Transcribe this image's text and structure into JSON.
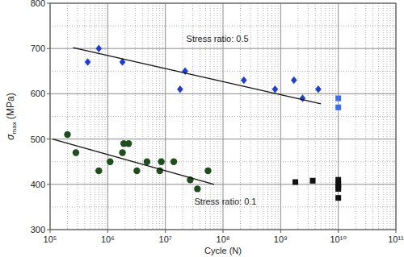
{
  "chart_data": {
    "type": "scatter",
    "log": "x",
    "grid": true,
    "x_label": "Cycle (N)",
    "y_label": "σmax (MPa)",
    "xlim": [
      100000,
      100000000000
    ],
    "ylim": [
      300,
      800
    ],
    "xticks": [
      {
        "value": 100000,
        "label": "10⁵"
      },
      {
        "value": 1000000,
        "label": "10⁶"
      },
      {
        "value": 10000000,
        "label": "10⁷"
      },
      {
        "value": 100000000,
        "label": "10⁸"
      },
      {
        "value": 1000000000,
        "label": "10⁹"
      },
      {
        "value": 10000000000,
        "label": "10¹⁰"
      },
      {
        "value": 100000000000,
        "label": "10¹¹"
      }
    ],
    "yticks": [
      300,
      400,
      500,
      600,
      700,
      800
    ],
    "series": [
      {
        "type": "scatter",
        "marker": "diamond",
        "color": "#1f3fd0",
        "x": [
          450000,
          700000,
          1800000,
          18000000,
          22000000,
          230000000,
          800000000,
          1700000000,
          2400000000,
          4500000000
        ],
        "values": [
          670,
          700,
          670,
          610,
          650,
          630,
          610,
          630,
          590,
          610
        ]
      },
      {
        "type": "scatter",
        "marker": "square",
        "color": "#3a6cf4",
        "x": [
          10000000000,
          10000000000
        ],
        "values": [
          590,
          570
        ]
      },
      {
        "type": "scatter",
        "marker": "circle",
        "color": "#1e4d1e",
        "x": [
          200000,
          280000,
          700000,
          1100000,
          1800000,
          1900000,
          2300000,
          3200000,
          4800000,
          8000000,
          8500000,
          14000000,
          27000000,
          36000000,
          55000000
        ],
        "values": [
          510,
          470,
          430,
          450,
          470,
          490,
          490,
          430,
          450,
          430,
          450,
          450,
          410,
          390,
          430
        ]
      },
      {
        "type": "scatter",
        "marker": "square",
        "color": "#111111",
        "x": [
          1800000000,
          3600000000,
          10000000000,
          10000000000,
          10000000000,
          10000000000,
          10000000000
        ],
        "values": [
          405,
          408,
          410,
          400,
          395,
          390,
          370
        ]
      },
      {
        "type": "line",
        "line_style": "solid",
        "color": "#111111",
        "x": [
          250000,
          5000000000
        ],
        "values": [
          702,
          578
        ]
      },
      {
        "type": "line",
        "line_style": "solid",
        "color": "#111111",
        "x": [
          110000,
          70000000
        ],
        "values": [
          500,
          400
        ]
      }
    ],
    "annotations": [
      {
        "text": "Stress ratio: 0.5",
        "x": 80000000,
        "y": 715
      },
      {
        "text": "Stress ratio: 0.1",
        "x": 110000000,
        "y": 355
      }
    ]
  }
}
